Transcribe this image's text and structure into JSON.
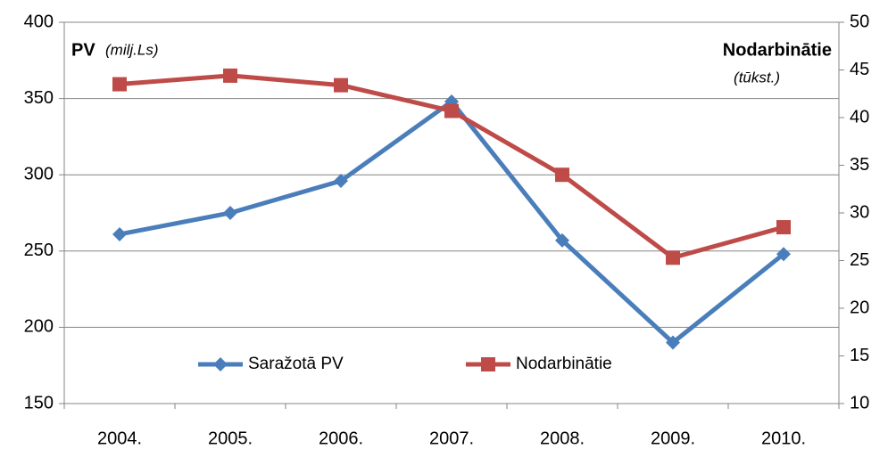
{
  "chart_data": {
    "type": "line",
    "y_label": "PV",
    "y_label_unit": "(milj.Ls)",
    "y2_label": "Nodarbinātie",
    "y2_label_unit": "(tūkst.)",
    "categories": [
      "2004.",
      "2005.",
      "2006.",
      "2007.",
      "2008.",
      "2009.",
      "2010."
    ],
    "series": [
      {
        "name": "Saražotā PV",
        "color": "#4a7ebb",
        "marker": "diamond",
        "values": [
          261,
          275,
          296,
          348,
          257,
          190,
          248
        ]
      },
      {
        "name": "Nodarbinātie",
        "color": "#be4b48",
        "marker": "square",
        "axis": "y2",
        "values": [
          43.5,
          44.4,
          43.4,
          40.7,
          34.0,
          25.3,
          28.5
        ]
      }
    ],
    "ylim": [
      150,
      400
    ],
    "yticks": [
      150,
      200,
      250,
      300,
      350,
      400
    ],
    "y2lim": [
      10,
      50
    ],
    "y2ticks": [
      10,
      15,
      20,
      25,
      30,
      35,
      40,
      45,
      50
    ],
    "grid": true,
    "legend": "bottom"
  }
}
